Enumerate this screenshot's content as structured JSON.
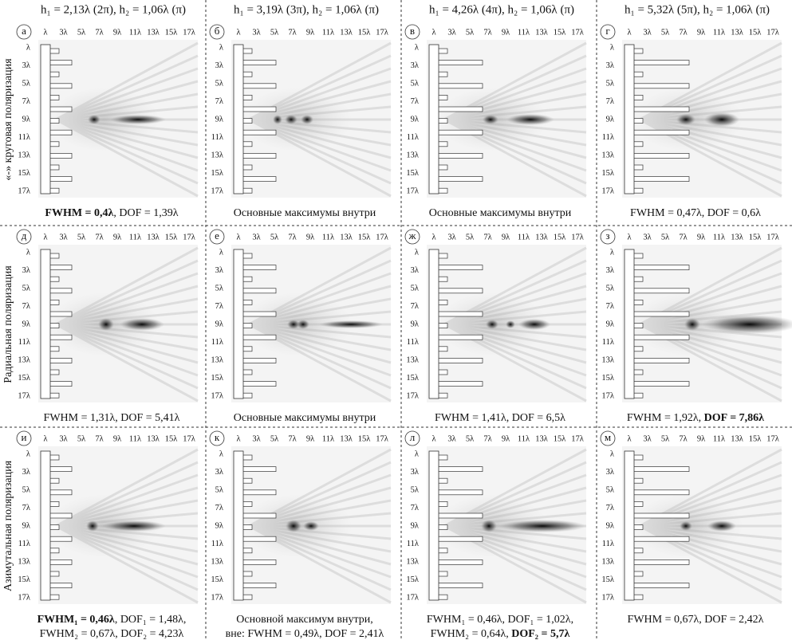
{
  "column_headers": [
    "h₁ = 2,13λ (2π), h₂ = 1,06λ (π)",
    "h₁ = 3,19λ (3π), h₂ = 1,06λ (π)",
    "h₁ = 4,26λ (4π), h₂ = 1,06λ (π)",
    "h₁ = 5,32λ (5π), h₂ = 1,06λ (π)"
  ],
  "axis_ticks": [
    "λ",
    "3λ",
    "5λ",
    "7λ",
    "9λ",
    "11λ",
    "13λ",
    "15λ",
    "17λ"
  ],
  "rows": [
    {
      "label": "«-» круговая поляризация",
      "panels": [
        {
          "letter": "а",
          "caption": [
            [
              {
                "text": "FWHM = 0,4λ",
                "bold": true
              },
              {
                "text": ", DOF = 1,39λ"
              }
            ]
          ]
        },
        {
          "letter": "б",
          "caption": [
            [
              {
                "text": "Основные максимумы внутри"
              }
            ]
          ]
        },
        {
          "letter": "в",
          "caption": [
            [
              {
                "text": "Основные максимумы внутри"
              }
            ]
          ]
        },
        {
          "letter": "г",
          "caption": [
            [
              {
                "text": "FWHM = 0,47λ, DOF = 0,6λ"
              }
            ]
          ]
        }
      ]
    },
    {
      "label": "Радиальная поляризация",
      "panels": [
        {
          "letter": "д",
          "caption": [
            [
              {
                "text": "FWHM = 1,31λ, DOF = 5,41λ"
              }
            ]
          ]
        },
        {
          "letter": "е",
          "caption": [
            [
              {
                "text": "Основные максимумы внутри"
              }
            ]
          ]
        },
        {
          "letter": "ж",
          "caption": [
            [
              {
                "text": "FWHM = 1,41λ, DOF = 6,5λ"
              }
            ]
          ]
        },
        {
          "letter": "з",
          "caption": [
            [
              {
                "text": "FWHM = 1,92λ, "
              },
              {
                "text": "DOF = 7,86λ",
                "bold": true
              }
            ]
          ]
        }
      ]
    },
    {
      "label": "Азимутальная поляризация",
      "panels": [
        {
          "letter": "и",
          "caption": [
            [
              {
                "text": "FWHM₁ = 0,46λ",
                "bold": true
              },
              {
                "text": ", DOF₁ = 1,48λ,"
              }
            ],
            [
              {
                "text": "FWHM₂ = 0,67λ, DOF₂ = 4,23λ"
              }
            ]
          ]
        },
        {
          "letter": "к",
          "caption": [
            [
              {
                "text": "Основной максимум внутри,"
              }
            ],
            [
              {
                "text": "вне: FWHM = 0,49λ, DOF = 2,41λ"
              }
            ]
          ]
        },
        {
          "letter": "л",
          "caption": [
            [
              {
                "text": "FWHM₁ = 0,46λ, DOF₁ = 1,02λ,"
              }
            ],
            [
              {
                "text": "FWHM₂ = 0,64λ, "
              },
              {
                "text": "DOF₂ = 5,7λ",
                "bold": true
              }
            ]
          ]
        },
        {
          "letter": "м",
          "caption": [
            [
              {
                "text": "FWHM = 0,67λ, DOF = 2,42λ"
              }
            ]
          ]
        }
      ]
    }
  ]
}
